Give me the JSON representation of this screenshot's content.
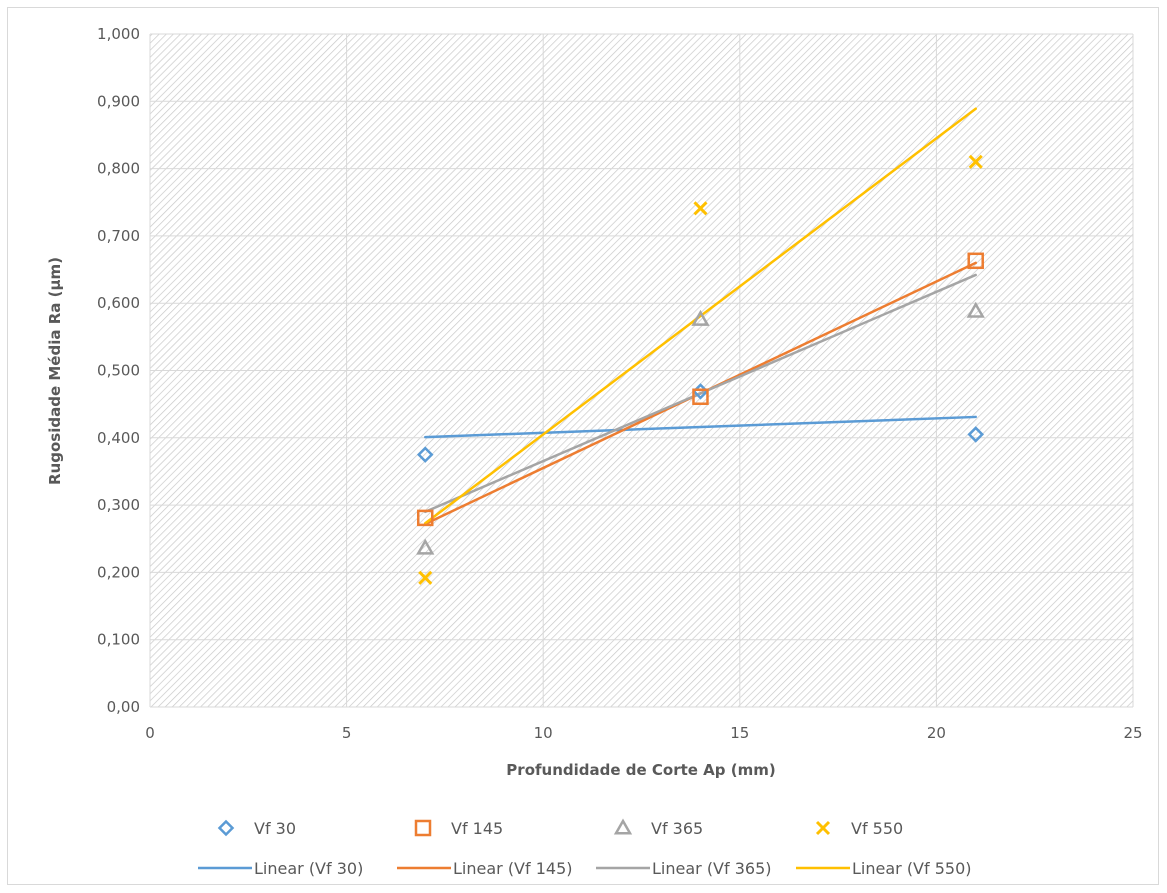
{
  "chart_data": {
    "type": "scatter",
    "title": "",
    "xlabel": "Profundidade de Corte Ap (mm)",
    "ylabel": "Rugosidade Média Ra (µm)",
    "xlim": [
      0,
      25
    ],
    "ylim": [
      0,
      1
    ],
    "x_ticks": [
      0,
      5,
      10,
      15,
      20,
      25
    ],
    "x_tick_labels": [
      "0",
      "5",
      "10",
      "15",
      "20",
      "25"
    ],
    "y_ticks": [
      0,
      0.1,
      0.2,
      0.3,
      0.4,
      0.5,
      0.6,
      0.7,
      0.8,
      0.9,
      1.0
    ],
    "y_tick_labels": [
      "0,00",
      "0,100",
      "0,200",
      "0,300",
      "0,400",
      "0,500",
      "0,600",
      "0,700",
      "0,800",
      "0,900",
      "1,000"
    ],
    "grid": true,
    "plot_background": "hatched",
    "legend_position": "bottom",
    "series": [
      {
        "name": "Vf 30",
        "marker": "diamond",
        "color": "#5b9bd5",
        "x": [
          7,
          14,
          21
        ],
        "y": [
          0.375,
          0.469,
          0.405
        ]
      },
      {
        "name": "Vf 145",
        "marker": "square",
        "color": "#ed7d31",
        "x": [
          7,
          14,
          21
        ],
        "y": [
          0.281,
          0.461,
          0.663
        ]
      },
      {
        "name": "Vf 365",
        "marker": "triangle",
        "color": "#a5a5a5",
        "x": [
          7,
          14,
          21
        ],
        "y": [
          0.236,
          0.576,
          0.588
        ]
      },
      {
        "name": "Vf 550",
        "marker": "x",
        "color": "#ffc000",
        "x": [
          7,
          14,
          21
        ],
        "y": [
          0.192,
          0.741,
          0.81
        ]
      }
    ],
    "trendlines": [
      {
        "name": "Linear (Vf 30)",
        "color": "#5b9bd5",
        "x": [
          7,
          21
        ],
        "y": [
          0.401,
          0.431
        ]
      },
      {
        "name": "Linear (Vf 145)",
        "color": "#ed7d31",
        "x": [
          7,
          21
        ],
        "y": [
          0.272,
          0.66
        ]
      },
      {
        "name": "Linear (Vf 365)",
        "color": "#a5a5a5",
        "x": [
          7,
          21
        ],
        "y": [
          0.29,
          0.642
        ]
      },
      {
        "name": "Linear (Vf 550)",
        "color": "#ffc000",
        "x": [
          7,
          21
        ],
        "y": [
          0.273,
          0.889
        ]
      }
    ]
  }
}
